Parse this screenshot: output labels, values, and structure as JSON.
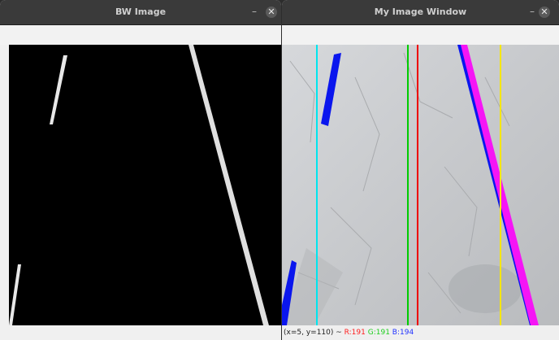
{
  "windows": {
    "bw": {
      "title": "BW Image",
      "minimize_label": "–",
      "close_label": "✕"
    },
    "main": {
      "title": "My Image Window",
      "minimize_label": "–",
      "close_label": "✕"
    }
  },
  "status": {
    "coords": "(x=5, y=110) ~",
    "r": "R:191",
    "g": "G:191",
    "b": "B:194"
  },
  "colors": {
    "lane_line": "#0000ff",
    "fit_line": "#ff00ff",
    "left_bound": "#00e5ee",
    "center_green": "#00cc00",
    "center_red": "#ee0000",
    "right_bound": "#f5e600"
  }
}
